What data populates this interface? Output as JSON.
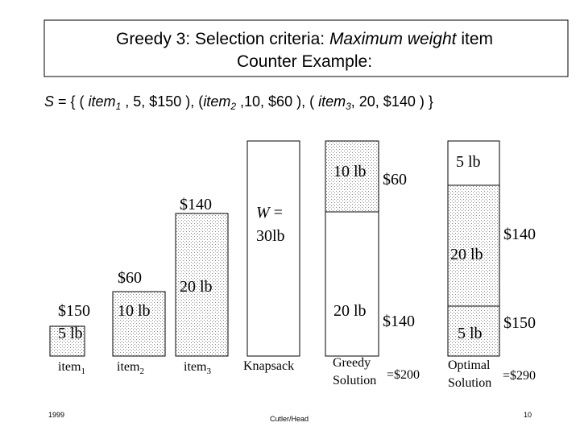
{
  "title": {
    "line1_prefix": "Greedy 3: Selection criteria: ",
    "line1_emphasis": "Maximum weight",
    "line1_suffix": " item",
    "line2": "Counter Example:"
  },
  "set_line": [
    "S",
    " = { ( ",
    "item",
    "1",
    " , 5, $150 ), (",
    "item",
    "2",
    " ,10, $60 ), ( ",
    "item",
    "3",
    ", 20, $140 ) }"
  ],
  "items": [
    {
      "name": "item",
      "sub": "1",
      "value": "$150",
      "weight": "5 lb"
    },
    {
      "name": "item",
      "sub": "2",
      "value": "$60",
      "weight": "10 lb"
    },
    {
      "name": "item",
      "sub": "3",
      "value": "$140",
      "weight": "20 lb"
    }
  ],
  "knapsack": {
    "capacity_line1": "W",
    "capacity_eq": " =",
    "capacity_line2": "30lb",
    "label": "Knapsack"
  },
  "greedy": {
    "top_weight": "10 lb",
    "top_value": "$60",
    "bottom_weight": "20 lb",
    "bottom_value": "$140",
    "label_line1": "Greedy",
    "label_line2": "Solution",
    "total": "=$200"
  },
  "optimal": {
    "top_weight": "5 lb",
    "middle_weight": "20 lb",
    "middle_value": "$140",
    "bottom_weight": "5 lb",
    "bottom_value": "$150",
    "label_line1": "Optimal",
    "label_line2": "Solution",
    "total": "=$290"
  },
  "footer": {
    "year": "1999",
    "author": "Cutler/Head",
    "page": "10"
  }
}
